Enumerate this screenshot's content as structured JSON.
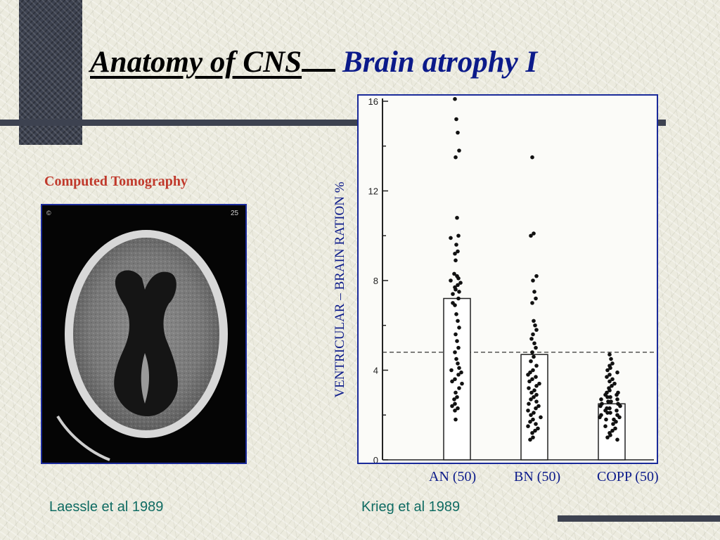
{
  "title": {
    "part1": "Anatomy of CNS",
    "part2": "Brain atrophy I"
  },
  "left_panel": {
    "caption": "Computed Tomography",
    "image_marks": {
      "corner_left": "©",
      "corner_right": "25"
    },
    "citation": "Laessle et al 1989"
  },
  "right_panel": {
    "citation": "Krieg et al 1989"
  },
  "colors": {
    "title_part2": "#0b1a8a",
    "caption": "#c0392b",
    "citation": "#0f6b62",
    "labels": "#0b1a8a",
    "frame": "#1a2a9a"
  },
  "chart_data": {
    "type": "scatter",
    "ylabel": "VENTRICULAR – BRAIN RATION %",
    "yticks": [
      "0",
      "4",
      "8",
      "12",
      "16"
    ],
    "ylim": [
      0,
      16
    ],
    "grid": false,
    "reference_line": 4.8,
    "categories": [
      "AN (50)",
      "BN (50)",
      "COPP (50)"
    ],
    "bar_means": [
      7.2,
      4.7,
      2.5
    ],
    "series": [
      {
        "values": [
          16.1,
          15.2,
          14.6,
          13.8,
          13.5,
          10.8,
          10.0,
          9.9,
          9.6,
          9.3,
          9.2,
          8.9,
          8.2,
          8.1,
          8.0,
          7.9,
          7.8,
          7.7,
          7.6,
          7.4,
          7.2,
          6.9,
          6.5,
          6.2,
          5.9,
          5.6,
          5.3,
          5.0,
          4.8,
          4.5,
          4.3,
          4.1,
          4.0,
          3.9,
          3.8,
          3.6,
          3.5,
          3.4,
          3.2,
          3.0,
          2.8,
          2.7,
          2.5,
          2.4,
          2.3,
          2.2,
          1.8,
          7.0,
          8.3,
          7.5
        ]
      },
      {
        "values": [
          13.5,
          10.1,
          10.0,
          8.2,
          8.0,
          7.5,
          7.2,
          7.0,
          6.2,
          6.0,
          5.8,
          5.6,
          5.2,
          5.0,
          4.8,
          4.6,
          4.4,
          4.2,
          4.0,
          3.9,
          3.7,
          3.6,
          3.5,
          3.4,
          3.3,
          3.2,
          3.1,
          3.0,
          2.9,
          2.8,
          2.7,
          2.6,
          2.5,
          2.4,
          2.3,
          2.2,
          2.1,
          2.0,
          1.9,
          1.8,
          1.7,
          1.6,
          1.5,
          1.4,
          1.3,
          1.2,
          1.0,
          0.9,
          5.4,
          3.8
        ]
      },
      {
        "values": [
          4.7,
          4.5,
          4.3,
          4.2,
          4.1,
          4.0,
          3.9,
          3.8,
          3.7,
          3.6,
          3.5,
          3.4,
          3.3,
          3.2,
          3.1,
          3.0,
          2.9,
          2.9,
          2.8,
          2.8,
          2.7,
          2.7,
          2.6,
          2.6,
          2.5,
          2.5,
          2.4,
          2.4,
          2.3,
          2.3,
          2.2,
          2.2,
          2.1,
          2.1,
          2.0,
          2.0,
          1.9,
          1.9,
          1.8,
          1.8,
          1.7,
          1.6,
          1.5,
          1.4,
          1.3,
          1.2,
          1.1,
          1.0,
          0.9,
          3.0
        ]
      }
    ]
  }
}
